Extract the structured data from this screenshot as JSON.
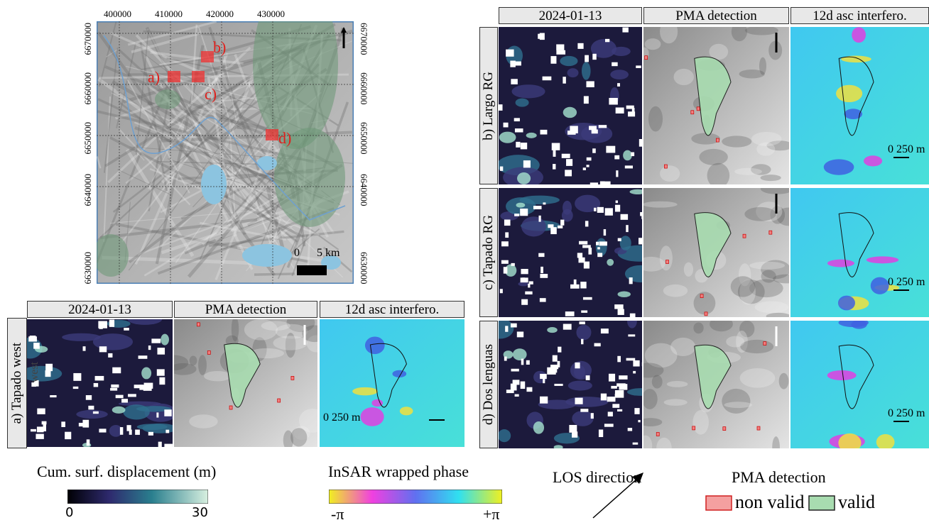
{
  "overview_map": {
    "easting_ticks": [
      "400000",
      "410000",
      "420000",
      "430000"
    ],
    "northing_ticks": [
      "6670000",
      "6660000",
      "6650000",
      "6640000",
      "6630000"
    ],
    "site_labels": [
      "a)",
      "b)",
      "c)",
      "d)"
    ],
    "scale_bar": {
      "start": "0",
      "end": "5 km"
    }
  },
  "column_headers": [
    "2024-01-13",
    "PMA detection",
    "12d asc interfero."
  ],
  "panels": [
    {
      "label": "a) Tapado west",
      "overlay_text": "west",
      "scale": "0 250 m"
    },
    {
      "label": "b) Largo RG",
      "scale": "0 250 m"
    },
    {
      "label": "c) Tapado RG",
      "scale": "0 250 m"
    },
    {
      "label": "d) Dos lenguas",
      "scale": "0 250 m"
    }
  ],
  "legends": {
    "displacement": {
      "title": "Cum. surf. displacement (m)",
      "min": "0",
      "max": "30"
    },
    "phase": {
      "title": "InSAR wrapped phase",
      "min": "-π",
      "max": "+π"
    },
    "los": {
      "title": "LOS direction"
    },
    "pma": {
      "title": "PMA detection",
      "non_valid": "non valid",
      "valid": "valid"
    }
  }
}
